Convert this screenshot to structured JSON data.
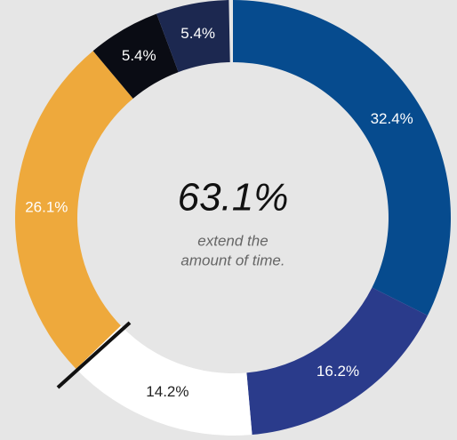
{
  "chart_data": {
    "type": "donut",
    "center_text": "63.1%",
    "center_caption": [
      "extend the",
      "amount of time."
    ],
    "categories": [
      null,
      null,
      null,
      null,
      null,
      null
    ],
    "values": [
      32.4,
      16.2,
      14.2,
      26.1,
      5.4,
      5.4
    ],
    "value_labels": [
      "32.4%",
      "16.2%",
      "14.2%",
      "26.1%",
      "5.4%",
      "5.4%"
    ],
    "colors": [
      "#064b8e",
      "#2a3b8b",
      "#ffffff",
      "#eea93c",
      "#0a0c14",
      "#1c2850"
    ]
  }
}
